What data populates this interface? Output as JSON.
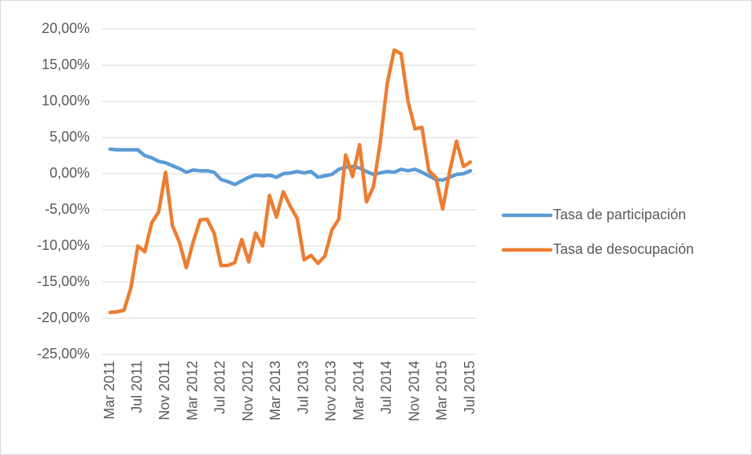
{
  "chart_data": {
    "type": "line",
    "categories": [
      "Mar 2011",
      null,
      null,
      null,
      "Jul 2011",
      null,
      null,
      null,
      "Nov 2011",
      null,
      null,
      null,
      "Mar 2012",
      null,
      null,
      null,
      "Jul 2012",
      null,
      null,
      null,
      "Nov 2012",
      null,
      null,
      null,
      "Mar 2013",
      null,
      null,
      null,
      "Jul 2013",
      null,
      null,
      null,
      "Nov 2013",
      null,
      null,
      null,
      "Mar 2014",
      null,
      null,
      null,
      "Jul 2014",
      null,
      null,
      null,
      "Nov 2014",
      null,
      null,
      null,
      "Mar 2015",
      null,
      null,
      null,
      "Jul 2015"
    ],
    "series": [
      {
        "name": "Tasa de participación",
        "color": "#5b9bd5",
        "values": [
          3.4,
          3.3,
          3.3,
          3.3,
          3.3,
          2.5,
          2.2,
          1.7,
          1.5,
          1.1,
          0.7,
          0.2,
          0.5,
          0.4,
          0.4,
          0.2,
          -0.8,
          -1.1,
          -1.5,
          -1.0,
          -0.5,
          -0.2,
          -0.3,
          -0.2,
          -0.5,
          0.0,
          0.1,
          0.3,
          0.1,
          0.3,
          -0.5,
          -0.3,
          -0.1,
          0.6,
          0.9,
          1.0,
          0.8,
          0.3,
          -0.1,
          0.1,
          0.3,
          0.2,
          0.6,
          0.4,
          0.6,
          0.2,
          -0.3,
          -0.8,
          -0.9,
          -0.5,
          -0.1,
          0.0,
          0.4
        ]
      },
      {
        "name": "Tasa de desocupación",
        "color": "#ed7d31",
        "values": [
          -19.2,
          -19.1,
          -18.9,
          -15.8,
          -10.0,
          -10.8,
          -6.8,
          -5.3,
          0.2,
          -7.2,
          -9.5,
          -13.0,
          -9.4,
          -6.4,
          -6.3,
          -8.2,
          -12.7,
          -12.7,
          -12.3,
          -9.1,
          -12.2,
          -8.2,
          -10.0,
          -3.0,
          -6.0,
          -2.5,
          -4.5,
          -6.2,
          -11.9,
          -11.3,
          -12.4,
          -11.4,
          -7.8,
          -6.3,
          2.6,
          -0.4,
          4.0,
          -3.9,
          -1.8,
          4.4,
          12.5,
          17.1,
          16.6,
          10.0,
          6.2,
          6.4,
          0.4,
          -0.5,
          -4.9,
          0.3,
          4.5,
          1.0,
          1.6
        ]
      }
    ],
    "ylim": [
      -25,
      20
    ],
    "yticks": [
      {
        "value": -25,
        "label": "-25,00%"
      },
      {
        "value": -20,
        "label": "-20,00%"
      },
      {
        "value": -15,
        "label": "-15,00%"
      },
      {
        "value": -10,
        "label": "-10,00%"
      },
      {
        "value": -5,
        "label": "-5,00%"
      },
      {
        "value": 0,
        "label": "0,00%"
      },
      {
        "value": 5,
        "label": "5,00%"
      },
      {
        "value": 10,
        "label": "10,00%"
      },
      {
        "value": 15,
        "label": "15,00%"
      },
      {
        "value": 20,
        "label": "20,00%"
      }
    ],
    "grid": true,
    "legend": "right"
  }
}
